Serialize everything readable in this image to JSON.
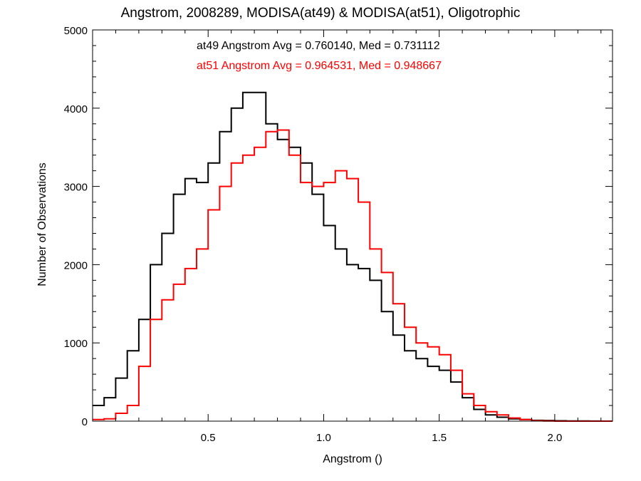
{
  "chart_data": {
    "type": "line",
    "title": "Angstrom, 2008289, MODISA(at49) & MODISA(at51), Oligotrophic",
    "xlabel": "Angstrom ()",
    "ylabel": "Number of Observations",
    "xlim": [
      0.0,
      2.25
    ],
    "ylim": [
      0,
      5000
    ],
    "x_ticks": [
      {
        "value": 0.5,
        "label": "0.5"
      },
      {
        "value": 1.0,
        "label": "1.0"
      },
      {
        "value": 1.5,
        "label": "1.5"
      },
      {
        "value": 2.0,
        "label": "2.0"
      }
    ],
    "y_ticks": [
      {
        "value": 0,
        "label": "0"
      },
      {
        "value": 1000,
        "label": "1000"
      },
      {
        "value": 2000,
        "label": "2000"
      },
      {
        "value": 3000,
        "label": "3000"
      },
      {
        "value": 4000,
        "label": "4000"
      },
      {
        "value": 5000,
        "label": "5000"
      }
    ],
    "annotations": [
      {
        "text": "at49 Angstrom Avg = 0.760140, Med = 0.731112",
        "color": "#000000"
      },
      {
        "text": "at51 Angstrom Avg = 0.964531, Med = 0.948667",
        "color": "#ff0000"
      }
    ],
    "grid": false,
    "step": true,
    "series": [
      {
        "color": "#000000",
        "x": [
          0.0,
          0.05,
          0.1,
          0.15,
          0.2,
          0.25,
          0.3,
          0.35,
          0.4,
          0.45,
          0.5,
          0.55,
          0.6,
          0.65,
          0.7,
          0.75,
          0.8,
          0.85,
          0.9,
          0.95,
          1.0,
          1.05,
          1.1,
          1.15,
          1.2,
          1.25,
          1.3,
          1.35,
          1.4,
          1.45,
          1.5,
          1.55,
          1.6,
          1.65,
          1.7,
          1.75,
          1.8,
          1.85,
          1.9,
          1.95,
          2.0,
          2.05,
          2.1,
          2.15,
          2.2,
          2.25
        ],
        "y": [
          200,
          300,
          550,
          900,
          1300,
          2000,
          2400,
          2900,
          3100,
          3050,
          3300,
          3700,
          4000,
          4200,
          4200,
          3800,
          3600,
          3500,
          3300,
          2900,
          2500,
          2200,
          2000,
          1950,
          1800,
          1400,
          1100,
          900,
          800,
          700,
          650,
          500,
          300,
          150,
          80,
          50,
          30,
          20,
          10,
          8,
          5,
          3,
          2,
          1,
          0,
          0
        ]
      },
      {
        "color": "#ff0000",
        "x": [
          0.0,
          0.05,
          0.1,
          0.15,
          0.2,
          0.25,
          0.3,
          0.35,
          0.4,
          0.45,
          0.5,
          0.55,
          0.6,
          0.65,
          0.7,
          0.75,
          0.8,
          0.85,
          0.9,
          0.95,
          1.0,
          1.05,
          1.1,
          1.15,
          1.2,
          1.25,
          1.3,
          1.35,
          1.4,
          1.45,
          1.5,
          1.55,
          1.6,
          1.65,
          1.7,
          1.75,
          1.8,
          1.85,
          1.9,
          1.95,
          2.0,
          2.05,
          2.1,
          2.15,
          2.2,
          2.25
        ],
        "y": [
          20,
          30,
          100,
          200,
          700,
          1300,
          1550,
          1750,
          1950,
          2200,
          2700,
          3000,
          3300,
          3400,
          3500,
          3700,
          3720,
          3400,
          3050,
          3000,
          3050,
          3200,
          3100,
          2800,
          2200,
          1900,
          1500,
          1200,
          1000,
          950,
          850,
          650,
          350,
          200,
          120,
          80,
          40,
          20,
          5,
          2,
          0,
          0,
          0,
          0,
          0,
          0
        ]
      }
    ]
  }
}
